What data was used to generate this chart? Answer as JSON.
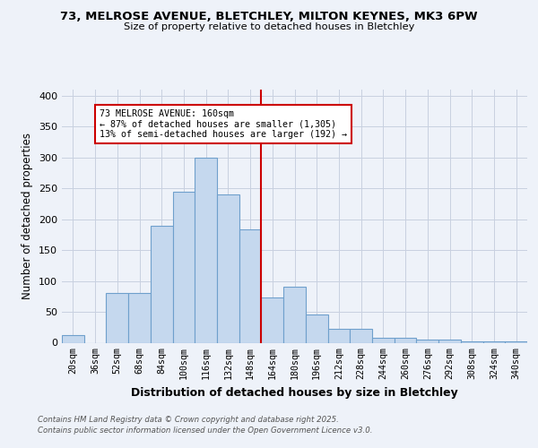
{
  "title_line1": "73, MELROSE AVENUE, BLETCHLEY, MILTON KEYNES, MK3 6PW",
  "title_line2": "Size of property relative to detached houses in Bletchley",
  "xlabel": "Distribution of detached houses by size in Bletchley",
  "ylabel": "Number of detached properties",
  "categories": [
    "20sqm",
    "36sqm",
    "52sqm",
    "68sqm",
    "84sqm",
    "100sqm",
    "116sqm",
    "132sqm",
    "148sqm",
    "164sqm",
    "180sqm",
    "196sqm",
    "212sqm",
    "228sqm",
    "244sqm",
    "260sqm",
    "276sqm",
    "292sqm",
    "308sqm",
    "324sqm",
    "340sqm"
  ],
  "values": [
    12,
    0,
    80,
    80,
    190,
    245,
    300,
    240,
    183,
    73,
    90,
    45,
    22,
    22,
    8,
    8,
    5,
    5,
    2,
    2,
    2
  ],
  "bar_color": "#c5d8ee",
  "bar_edge_color": "#6fa0cc",
  "vline_color": "#cc0000",
  "vline_index": 9,
  "annotation_text": "73 MELROSE AVENUE: 160sqm\n← 87% of detached houses are smaller (1,305)\n13% of semi-detached houses are larger (192) →",
  "annotation_box_color": "#ffffff",
  "annotation_box_edge_color": "#cc0000",
  "footer_line1": "Contains HM Land Registry data © Crown copyright and database right 2025.",
  "footer_line2": "Contains public sector information licensed under the Open Government Licence v3.0.",
  "bg_color": "#eef2f9",
  "ylim": [
    0,
    410
  ],
  "yticks": [
    0,
    50,
    100,
    150,
    200,
    250,
    300,
    350,
    400
  ]
}
